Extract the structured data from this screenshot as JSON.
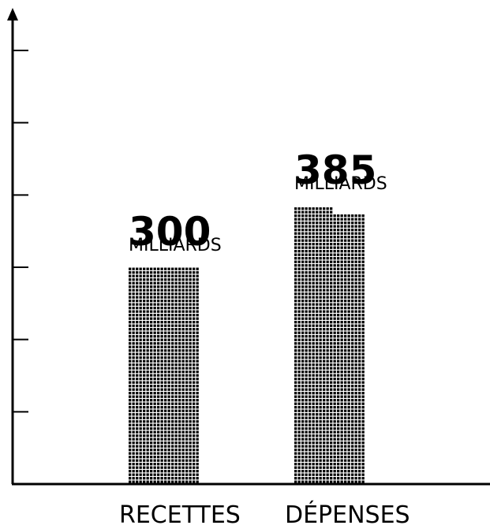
{
  "chart_data": {
    "type": "bar",
    "categories": [
      "RECETTES",
      "DÉPENSES"
    ],
    "values": [
      300,
      385
    ],
    "value_labels": [
      "300",
      "385"
    ],
    "unit_label": "MILLIARDS",
    "ylim": [
      0,
      600
    ],
    "y_tick_count": 6,
    "grid": false,
    "legend": "none",
    "bar_style": "dot-matrix",
    "colors": {
      "bar": "#000000",
      "axis": "#000000",
      "background": "#ffffff"
    }
  }
}
